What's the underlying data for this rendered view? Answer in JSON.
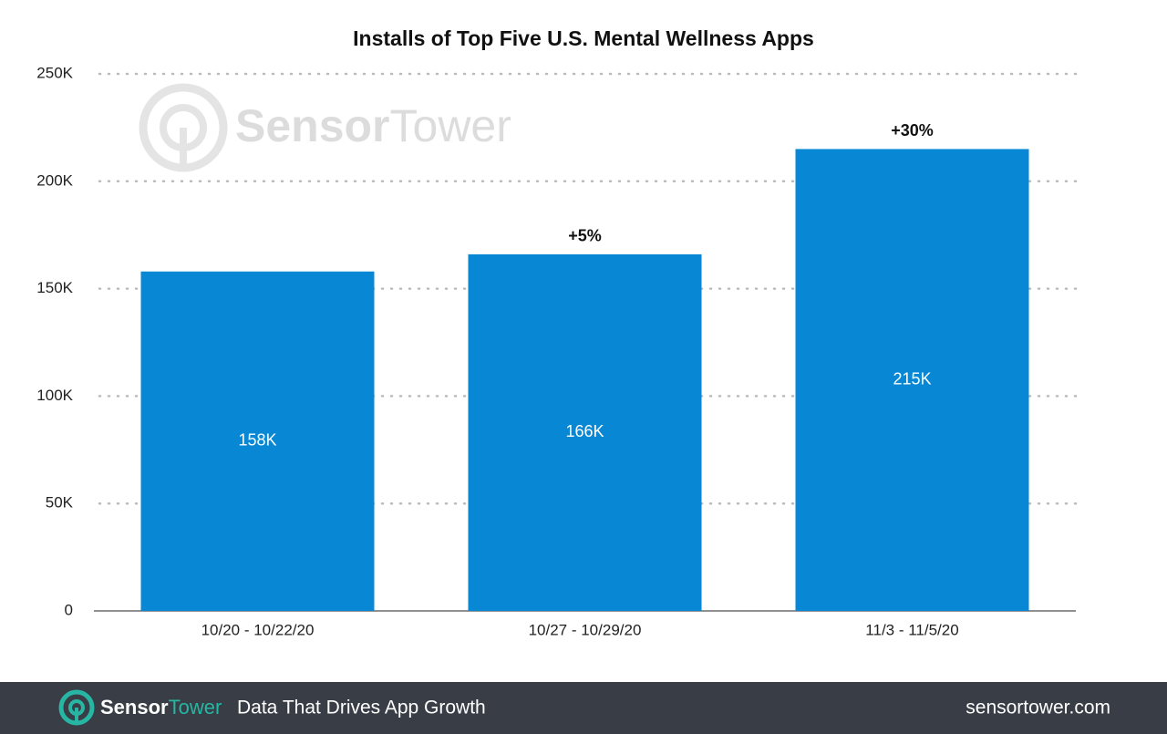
{
  "chart_data": {
    "type": "bar",
    "title": "Installs of Top Five U.S. Mental Wellness Apps",
    "categories": [
      "10/20 - 10/22/20",
      "10/27 - 10/29/20",
      "11/3 - 11/5/20"
    ],
    "values": [
      158000,
      166000,
      215000
    ],
    "value_labels": [
      "158K",
      "166K",
      "215K"
    ],
    "annotations": [
      null,
      "+5%",
      "+30%"
    ],
    "color": "#0787d4",
    "ylim": [
      0,
      250000
    ],
    "yticks": [
      0,
      {
        "value": 50000,
        "label": "50K"
      },
      {
        "value": 100000,
        "label": "100K"
      },
      {
        "value": 150000,
        "label": "150K"
      },
      {
        "value": 200000,
        "label": "200K"
      },
      {
        "value": 250000,
        "label": "250K"
      }
    ],
    "grid": true
  },
  "watermark": [
    "Sensor",
    "Tower"
  ],
  "footer": {
    "brand": [
      "Sensor",
      "Tower"
    ],
    "tagline": "Data That Drives App Growth",
    "url": "sensortower.com"
  }
}
